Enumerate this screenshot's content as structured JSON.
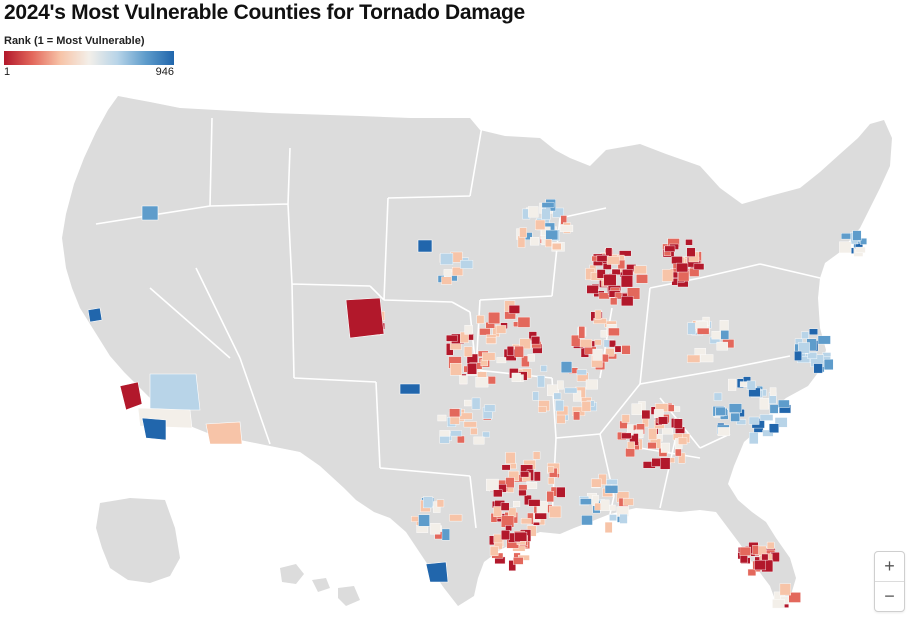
{
  "title": "2024's Most Vulnerable Counties for Tornado Damage",
  "legend": {
    "title": "Rank (1 = Most Vulnerable)",
    "min_label": "1",
    "max_label": "946",
    "min_rank": 1,
    "max_rank": 946,
    "color_scale": [
      "#b2182b",
      "#e3685c",
      "#f7c4a8",
      "#f3efe9",
      "#b8d4e8",
      "#5e9ccb",
      "#2166ac"
    ]
  },
  "map": {
    "land_color": "#dcdcdc",
    "border_color": "#ffffff",
    "no_data_color": "#dcdcdc"
  },
  "zoom": {
    "in_label": "+",
    "out_label": "−"
  }
}
